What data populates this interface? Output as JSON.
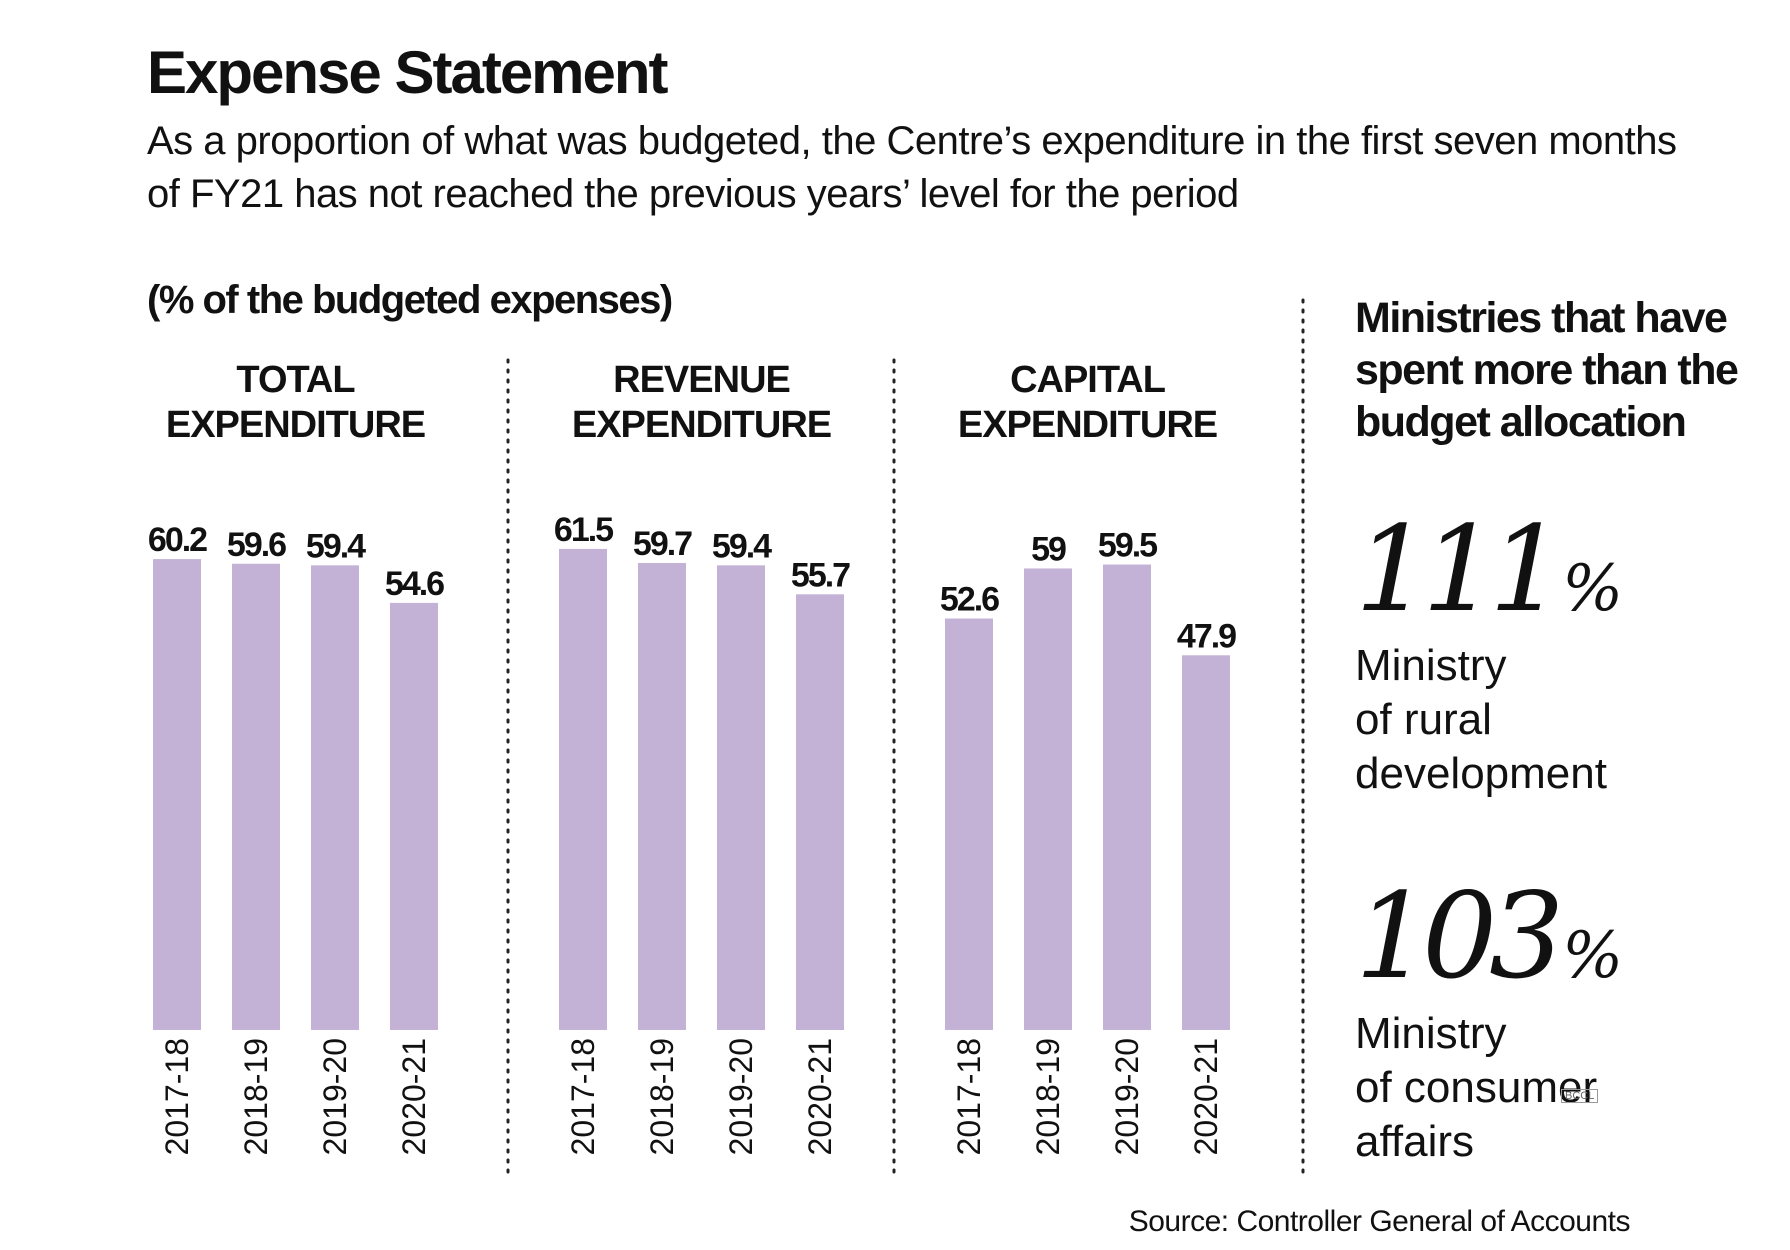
{
  "title": "Expense Statement",
  "subtitle": "As a proportion of what was budgeted, the Centre’s expenditure in the first seven months of FY21 has not reached the previous years’ level for the period",
  "unit_label": "(% of the budgeted expenses)",
  "colors": {
    "bar": "#c3b2d6",
    "text": "#111111",
    "divider": "#222222"
  },
  "chart_data": [
    {
      "type": "bar",
      "title": [
        "TOTAL",
        "EXPENDITURE"
      ],
      "categories": [
        "2017-18",
        "2018-19",
        "2019-20",
        "2020-21"
      ],
      "values": [
        60.2,
        59.6,
        59.4,
        54.6
      ],
      "value_labels": [
        "60.2",
        "59.6",
        "59.4",
        "54.6"
      ],
      "ylabel": "% of the budgeted expenses",
      "ylim": [
        0,
        62
      ]
    },
    {
      "type": "bar",
      "title": [
        "REVENUE",
        "EXPENDITURE"
      ],
      "categories": [
        "2017-18",
        "2018-19",
        "2019-20",
        "2020-21"
      ],
      "values": [
        61.5,
        59.7,
        59.4,
        55.7
      ],
      "value_labels": [
        "61.5",
        "59.7",
        "59.4",
        "55.7"
      ],
      "ylabel": "% of the budgeted expenses",
      "ylim": [
        0,
        62
      ]
    },
    {
      "type": "bar",
      "title": [
        "CAPITAL",
        "EXPENDITURE"
      ],
      "categories": [
        "2017-18",
        "2018-19",
        "2019-20",
        "2020-21"
      ],
      "values": [
        52.6,
        59,
        59.5,
        47.9
      ],
      "value_labels": [
        "52.6",
        "59",
        "59.5",
        "47.9"
      ],
      "ylabel": "% of the budgeted expenses",
      "ylim": [
        0,
        62
      ]
    }
  ],
  "side_panel": {
    "heading": "Ministries that have spent more than the budget allocation",
    "stats": [
      {
        "number": "111",
        "percent_sign": "%",
        "label_lines": [
          "Ministry",
          "of rural",
          "development"
        ]
      },
      {
        "number": "103",
        "percent_sign": "%",
        "label_lines": [
          "Ministry",
          "of consumer",
          "affairs"
        ]
      }
    ]
  },
  "watermark": "BCCL",
  "source": "Source: Controller General of Accounts"
}
